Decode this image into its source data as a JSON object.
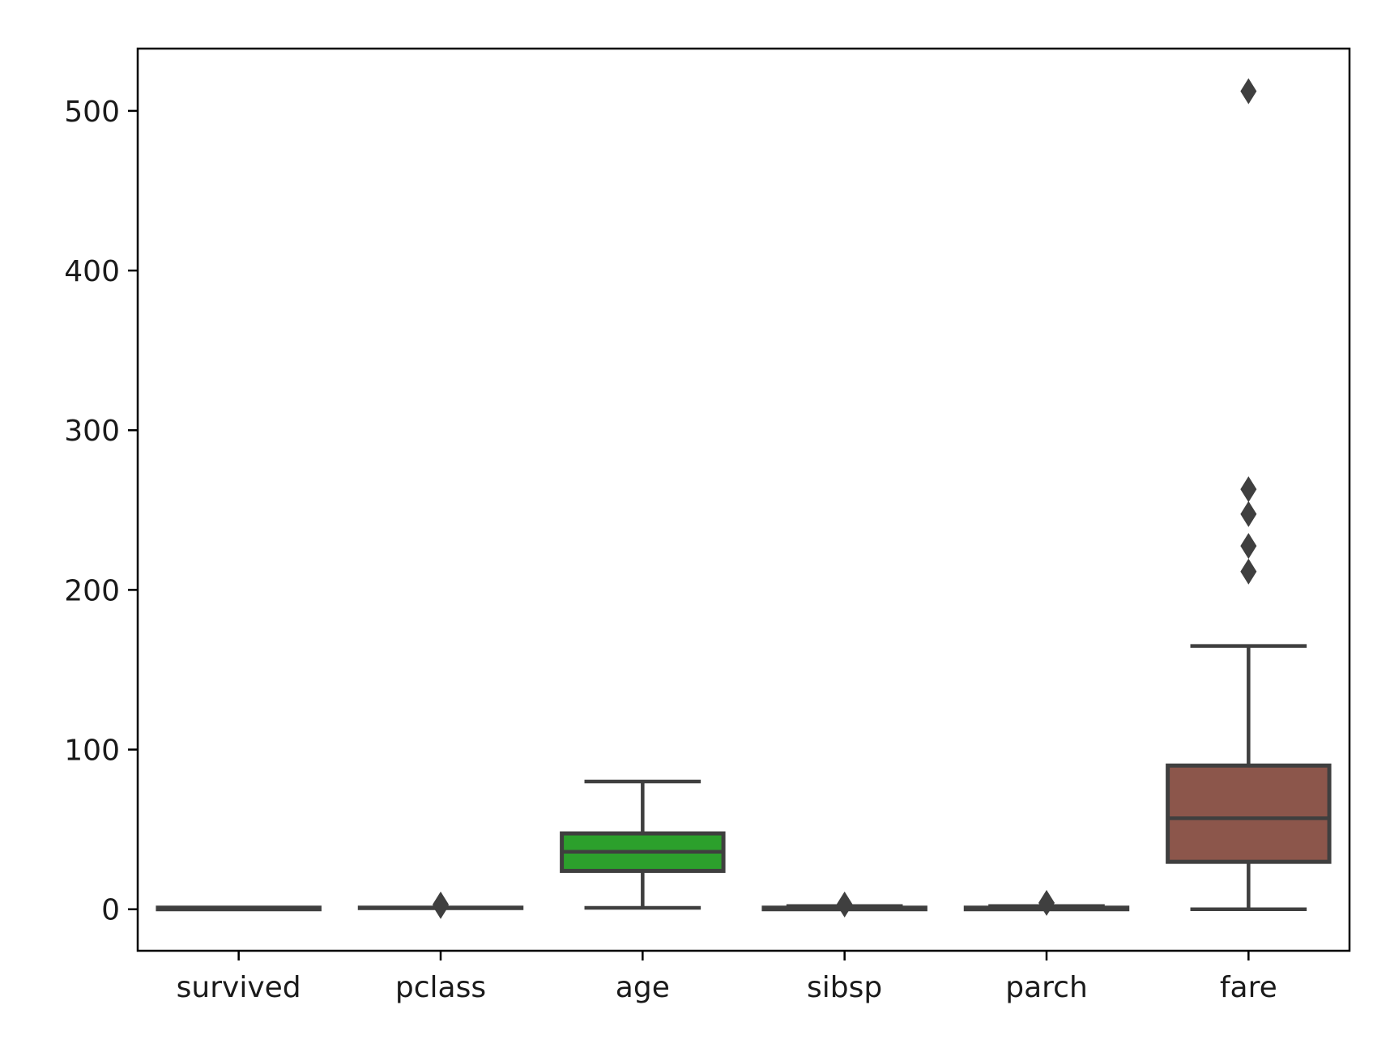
{
  "chart_data": {
    "type": "box",
    "title": "",
    "xlabel": "",
    "ylabel": "",
    "ylim": [
      -26,
      539
    ],
    "yticks": [
      0,
      100,
      200,
      300,
      400,
      500
    ],
    "grid": false,
    "legend": "none",
    "categories": [
      "survived",
      "pclass",
      "age",
      "sibsp",
      "parch",
      "fare"
    ],
    "boxes": [
      {
        "name": "survived",
        "whisker_low": 0,
        "q1": 0,
        "median": 0,
        "q3": 1,
        "whisker_high": 1,
        "outliers": [],
        "color": "#1f77b4"
      },
      {
        "name": "pclass",
        "whisker_low": 1,
        "q1": 1,
        "median": 1,
        "q3": 1,
        "whisker_high": 1,
        "outliers": [
          2,
          3
        ],
        "color": "#ff7f0e"
      },
      {
        "name": "age",
        "whisker_low": 0.9,
        "q1": 24,
        "median": 36,
        "q3": 47.5,
        "whisker_high": 80,
        "outliers": [],
        "color": "#2ca02c"
      },
      {
        "name": "sibsp",
        "whisker_low": 0,
        "q1": 0,
        "median": 0,
        "q3": 1,
        "whisker_high": 2,
        "outliers": [
          3
        ],
        "color": "#d62728"
      },
      {
        "name": "parch",
        "whisker_low": 0,
        "q1": 0,
        "median": 0,
        "q3": 1,
        "whisker_high": 2,
        "outliers": [
          4
        ],
        "color": "#9467bd"
      },
      {
        "name": "fare",
        "whisker_low": 0,
        "q1": 29.7,
        "median": 57,
        "q3": 90,
        "whisker_high": 164.9,
        "outliers": [
          211.5,
          227.5,
          247.5,
          263,
          512.3
        ],
        "color": "#8c564b"
      }
    ]
  }
}
